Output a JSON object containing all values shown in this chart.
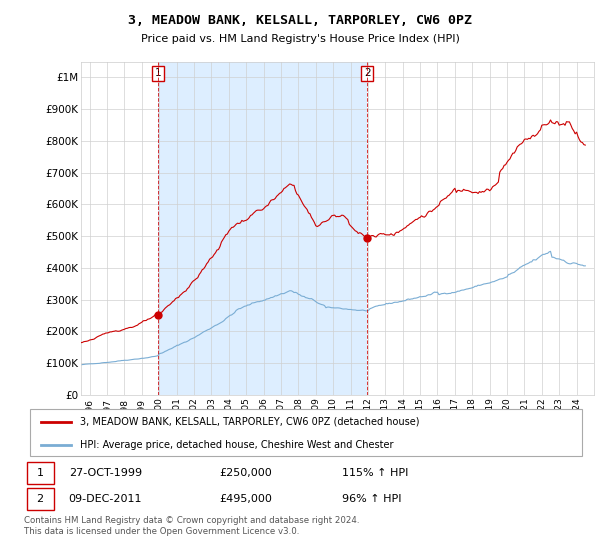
{
  "title": "3, MEADOW BANK, KELSALL, TARPORLEY, CW6 0PZ",
  "subtitle": "Price paid vs. HM Land Registry's House Price Index (HPI)",
  "ylim": [
    0,
    1050000
  ],
  "yticks": [
    0,
    100000,
    200000,
    300000,
    400000,
    500000,
    600000,
    700000,
    800000,
    900000,
    1000000
  ],
  "ytick_labels": [
    "£0",
    "£100K",
    "£200K",
    "£300K",
    "£400K",
    "£500K",
    "£600K",
    "£700K",
    "£800K",
    "£900K",
    "£1M"
  ],
  "red_color": "#cc0000",
  "blue_color": "#7aadd4",
  "shade_color": "#ddeeff",
  "sale1_year": 1999.917,
  "sale1_price": 250000,
  "sale1_label": "27-OCT-1999",
  "sale1_amount": "£250,000",
  "sale1_hpi": "115% ↑ HPI",
  "sale2_year": 2011.958,
  "sale2_price": 495000,
  "sale2_label": "09-DEC-2011",
  "sale2_amount": "£495,000",
  "sale2_hpi": "96% ↑ HPI",
  "legend_line1": "3, MEADOW BANK, KELSALL, TARPORLEY, CW6 0PZ (detached house)",
  "legend_line2": "HPI: Average price, detached house, Cheshire West and Chester",
  "footer": "Contains HM Land Registry data © Crown copyright and database right 2024.\nThis data is licensed under the Open Government Licence v3.0.",
  "xlim_left": 1995.5,
  "xlim_right": 2025.0
}
